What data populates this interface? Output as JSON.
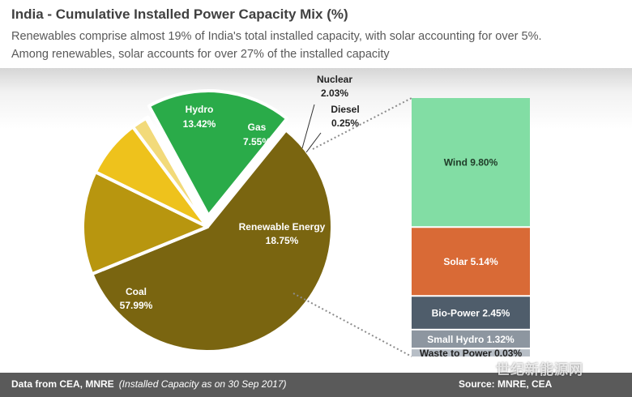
{
  "header": {
    "title": "India - Cumulative Installed Power Capacity Mix (%)",
    "subtitle_line1": "Renewables comprise almost 19% of India's total installed capacity, with solar accounting for over 5%.",
    "subtitle_line2": "Among renewables, solar accounts for over 27% of the installed capacity"
  },
  "chart_data": [
    {
      "type": "pie",
      "title": "India - Cumulative Installed Power Capacity Mix (%)",
      "slices": [
        {
          "label": "Renewable Energy",
          "value": 18.75,
          "value_label": "18.75%",
          "color": "#2aab49",
          "exploded": true
        },
        {
          "label": "Coal",
          "value": 57.99,
          "value_label": "57.99%",
          "color": "#7a6510",
          "exploded": false
        },
        {
          "label": "Hydro",
          "value": 13.42,
          "value_label": "13.42%",
          "color": "#b8960f",
          "exploded": false
        },
        {
          "label": "Gas",
          "value": 7.55,
          "value_label": "7.55%",
          "color": "#eec21c",
          "exploded": false
        },
        {
          "label": "Nuclear",
          "value": 2.03,
          "value_label": "2.03%",
          "color": "#f2da7a",
          "exploded": false
        },
        {
          "label": "Diesel",
          "value": 0.25,
          "value_label": "0.25%",
          "color": "#3b3b3b",
          "exploded": false
        }
      ],
      "start_angle_deg": 118.5,
      "direction": "counterclockwise"
    },
    {
      "type": "bar",
      "orientation": "stacked-vertical",
      "categories": [
        "Waste to Power",
        "Small Hydro",
        "Bio-Power",
        "Solar",
        "Wind"
      ],
      "series": [
        {
          "label": "Wind",
          "value": 9.8,
          "display": "Wind 9.80%",
          "color": "#82dda4",
          "text_color": "#1f3b28"
        },
        {
          "label": "Solar",
          "value": 5.14,
          "display": "Solar 5.14%",
          "color": "#d96a36",
          "text_color": "#ffffff"
        },
        {
          "label": "Bio-Power",
          "value": 2.45,
          "display": "Bio-Power 2.45%",
          "color": "#4f5d6b",
          "text_color": "#ffffff"
        },
        {
          "label": "Small Hydro",
          "value": 1.32,
          "display": "Small Hydro 1.32%",
          "color": "#8d96a0",
          "text_color": "#ffffff"
        },
        {
          "label": "Waste to Power",
          "value": 0.03,
          "display": "Waste to Power 0.03%",
          "color": "#b7bec6",
          "text_color": "#222222"
        }
      ]
    }
  ],
  "footer": {
    "source_bold": "Data from CEA, MNRE",
    "source_note": "(Installed Capacity as on 30 Sep 2017)",
    "source_right": "Source: MNRE, CEA"
  },
  "watermark": "世纪新能源网"
}
